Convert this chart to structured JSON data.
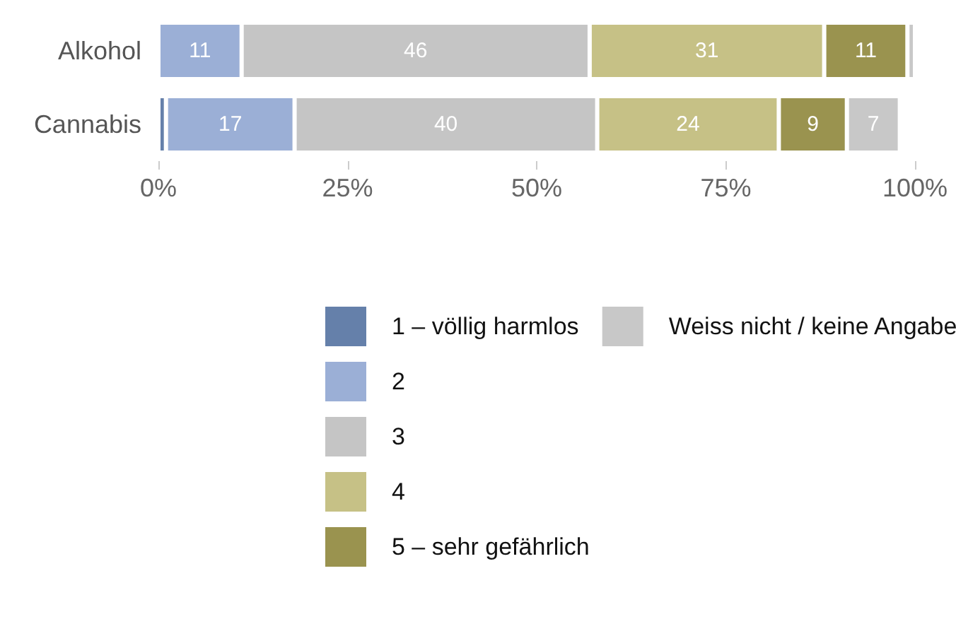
{
  "chart_data": {
    "type": "bar",
    "orientation": "horizontal",
    "stacked": true,
    "categories": [
      "Alkohol",
      "Cannabis"
    ],
    "series": [
      {
        "name": "1 – völlig harmlos",
        "color": "#6580aa",
        "values": [
          0,
          1
        ],
        "value_labels": [
          null,
          null
        ]
      },
      {
        "name": "2",
        "color": "#9bafd6",
        "values": [
          11,
          17
        ],
        "value_labels": [
          "11",
          "17"
        ]
      },
      {
        "name": "3",
        "color": "#c5c5c5",
        "values": [
          46,
          40
        ],
        "value_labels": [
          "46",
          "40"
        ]
      },
      {
        "name": "4",
        "color": "#c6c186",
        "values": [
          31,
          24
        ],
        "value_labels": [
          "31",
          "24"
        ]
      },
      {
        "name": "5 – sehr gefährlich",
        "color": "#9a934f",
        "values": [
          11,
          9
        ],
        "value_labels": [
          "11",
          "9"
        ]
      },
      {
        "name": "Weiss nicht / keine Angabe",
        "color": "#c8c8c8",
        "values": [
          1,
          7
        ],
        "value_labels": [
          null,
          "7"
        ]
      }
    ],
    "xlim": [
      0,
      100
    ],
    "xticks": [
      {
        "value": 0,
        "label": "0%"
      },
      {
        "value": 25,
        "label": "25%"
      },
      {
        "value": 50,
        "label": "50%"
      },
      {
        "value": 75,
        "label": "75%"
      },
      {
        "value": 100,
        "label": "100%"
      }
    ],
    "grid": false,
    "legend": "bottom"
  }
}
